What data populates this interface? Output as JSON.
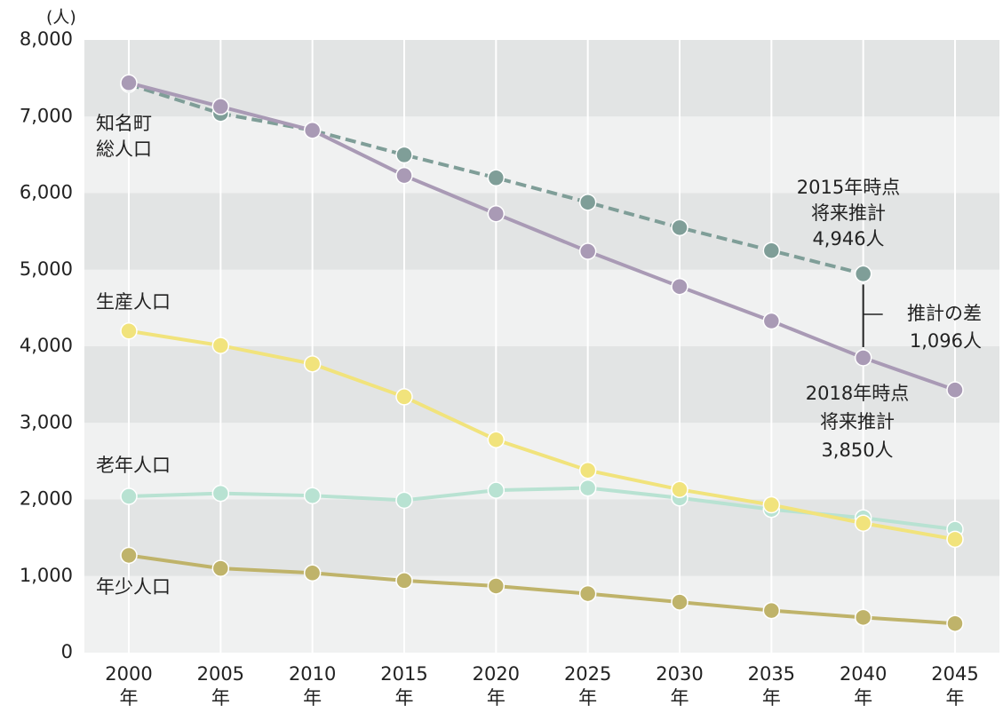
{
  "chart_data": {
    "type": "line",
    "y_unit": "(人)",
    "categories": [
      "2000",
      "2005",
      "2010",
      "2015",
      "2020",
      "2025",
      "2030",
      "2035",
      "2040",
      "2045"
    ],
    "category_suffix": "年",
    "ylim": [
      0,
      8000
    ],
    "yticks": [
      0,
      {
        "value": 1000,
        "label": "1,000"
      },
      {
        "value": 2000,
        "label": "2,000"
      },
      {
        "value": 3000,
        "label": "3,000"
      },
      {
        "value": 4000,
        "label": "4,000"
      },
      {
        "value": 5000,
        "label": "5,000"
      },
      {
        "value": 6000,
        "label": "6,000"
      },
      {
        "value": 7000,
        "label": "7,000"
      },
      {
        "value": 8000,
        "label": "8,000"
      }
    ],
    "series": [
      {
        "name": "年少人口",
        "color": "#bfb36a",
        "values": [
          1270,
          1100,
          1040,
          940,
          870,
          770,
          660,
          550,
          460,
          380
        ]
      },
      {
        "name": "老年人口",
        "color": "#b8e2d2",
        "values": [
          2040,
          2080,
          2050,
          1990,
          2120,
          2150,
          2020,
          1870,
          1760,
          1610
        ]
      },
      {
        "name": "生産人口",
        "color": "#f1e37c",
        "values": [
          4200,
          4010,
          3770,
          3340,
          2780,
          2380,
          2130,
          1930,
          1690,
          1480
        ]
      },
      {
        "color": "#7f9e98",
        "dashed": true,
        "values": [
          7420,
          7040,
          6820,
          6500,
          6200,
          5880,
          5550,
          5250,
          4946,
          null
        ]
      },
      {
        "color": "#a99ab5",
        "values": [
          7440,
          7130,
          6820,
          6230,
          5730,
          5240,
          4780,
          4330,
          3850,
          3430
        ]
      }
    ],
    "annotations": [
      {
        "lines": [
          "知名町",
          "総人口"
        ]
      },
      {
        "lines": [
          "2015年時点",
          "将来推計",
          "4,946人"
        ]
      },
      {
        "lines": [
          "2018年時点",
          "将来推計",
          "3,850人"
        ]
      },
      {
        "lines": [
          "推計の差",
          "1,096人"
        ]
      }
    ]
  }
}
